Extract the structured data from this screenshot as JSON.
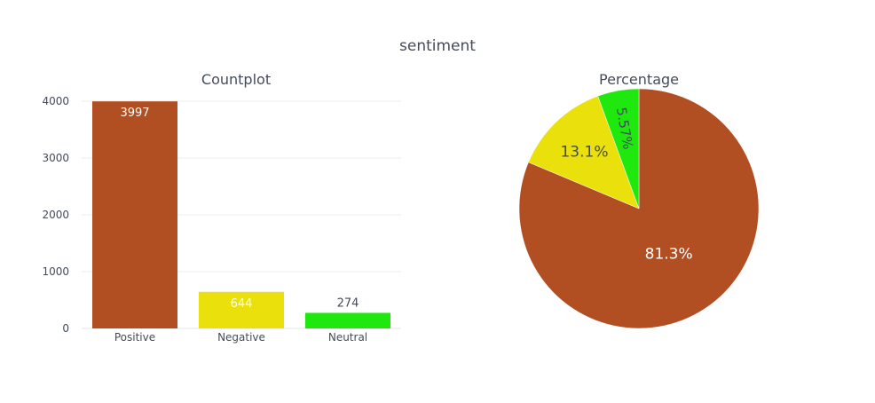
{
  "title": "sentiment",
  "colors": {
    "positive": "#B24F22",
    "negative": "#EAE00B",
    "neutral": "#1EE80E",
    "text": "#444b5a",
    "grid": "#eeeeee"
  },
  "chart_data": [
    {
      "type": "bar",
      "title": "Countplot",
      "categories": [
        "Positive",
        "Negative",
        "Neutral"
      ],
      "values": [
        3997,
        644,
        274
      ],
      "value_labels": [
        "3997",
        "644",
        "274"
      ],
      "ylim": [
        0,
        4000
      ],
      "yticks": [
        0,
        1000,
        2000,
        3000,
        4000
      ],
      "ytick_labels": [
        "0",
        "1000",
        "2000",
        "3000",
        "4000"
      ],
      "grid": true
    },
    {
      "type": "pie",
      "title": "Percentage",
      "slices": [
        {
          "name": "Positive",
          "value": 3997,
          "label": "81.3%"
        },
        {
          "name": "Negative",
          "value": 644,
          "label": "13.1%"
        },
        {
          "name": "Neutral",
          "value": 274,
          "label": "5.57%"
        }
      ]
    }
  ]
}
